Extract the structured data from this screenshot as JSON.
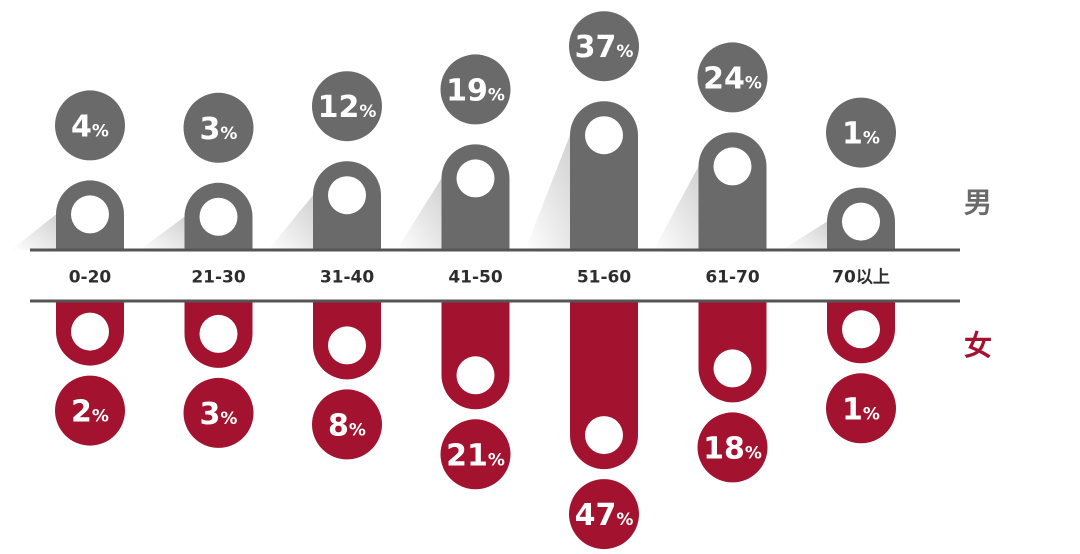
{
  "colors": {
    "male": "#6a6a6a",
    "female": "#a3122f",
    "axis_line": "#555555",
    "hole": "#ffffff",
    "label_text": "#2d2d2d"
  },
  "chart_data": {
    "type": "bar",
    "categories": [
      "0-20",
      "21-30",
      "31-40",
      "41-50",
      "51-60",
      "61-70",
      "70以上"
    ],
    "series": [
      {
        "name": "男",
        "values": [
          4,
          3,
          12,
          19,
          37,
          24,
          1
        ]
      },
      {
        "name": "女",
        "values": [
          2,
          3,
          8,
          21,
          47,
          18,
          1
        ]
      }
    ],
    "value_suffix": "%",
    "layout": "mirrored-vertical"
  }
}
